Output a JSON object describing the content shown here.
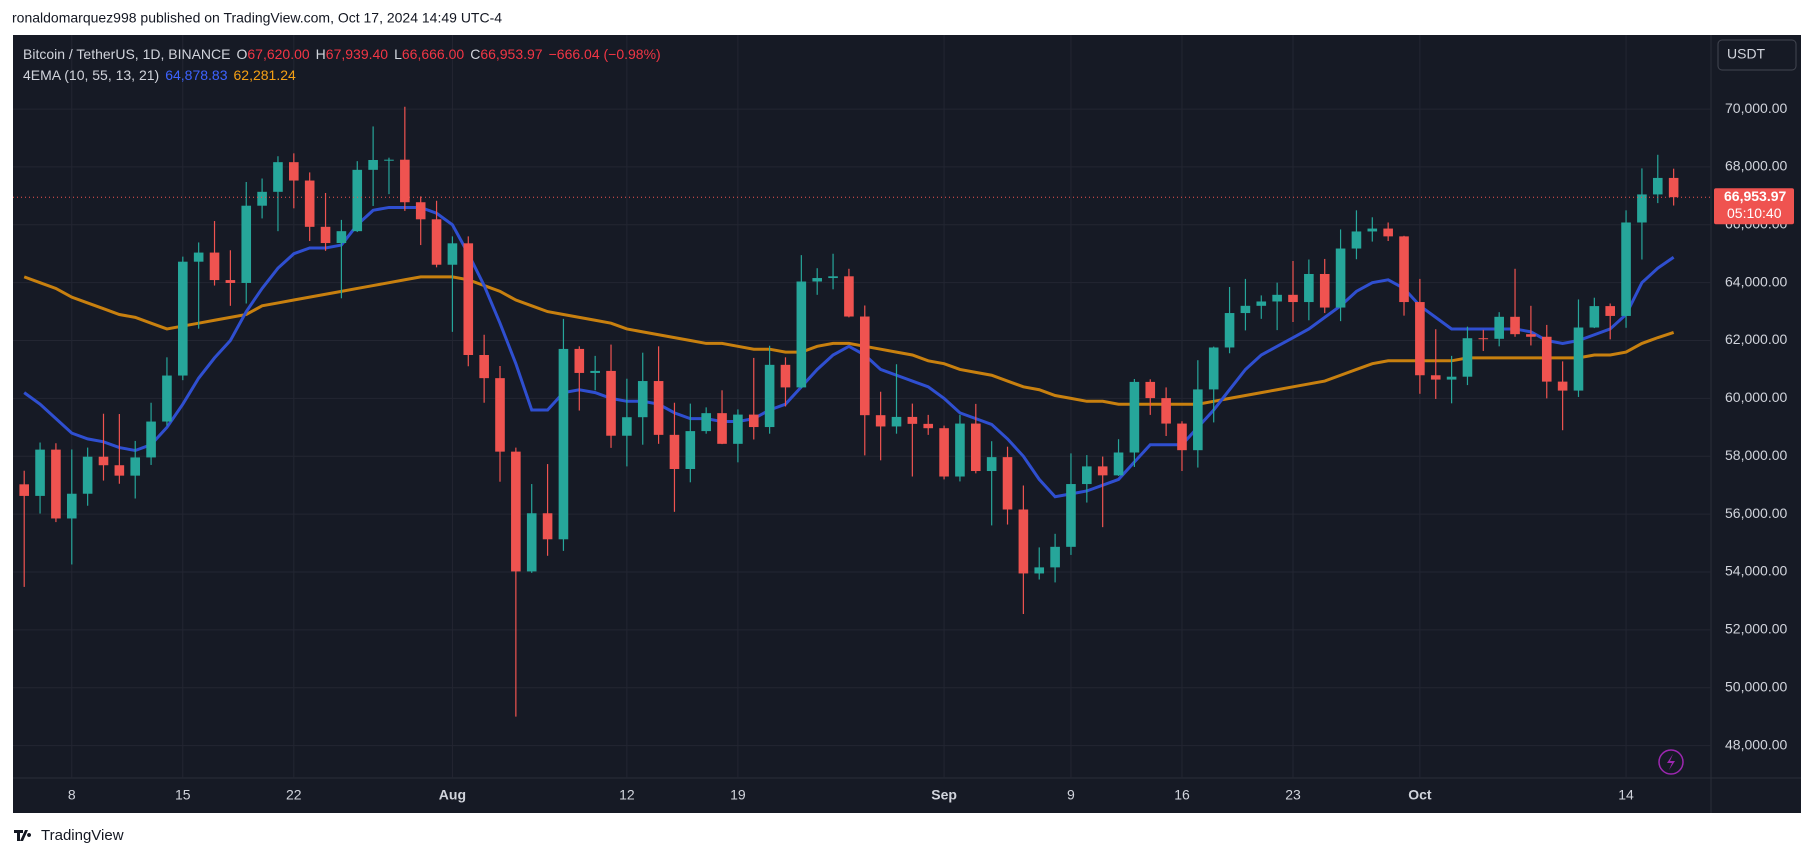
{
  "header": {
    "published": "ronaldomarquez998 published on TradingView.com, Oct 17, 2024 14:49 UTC-4",
    "currency": "USDT",
    "brand": "TradingView"
  },
  "chart_data": {
    "type": "candlestick",
    "symbol": "Bitcoin / TetherUS, 1D, BINANCE",
    "ohlc_legend": [
      {
        "key": "O",
        "value": "67,620.00"
      },
      {
        "key": "H",
        "value": "67,939.40"
      },
      {
        "key": "L",
        "value": "66,666.00"
      },
      {
        "key": "C",
        "value": "66,953.97"
      }
    ],
    "change": "−666.04 (−0.98%)",
    "up_color": "#26a69a",
    "down_color": "#ef5350",
    "x": [
      "Jul 5",
      "Jul 6",
      "Jul 7",
      "Jul 8",
      "Jul 9",
      "Jul 10",
      "Jul 11",
      "Jul 12",
      "Jul 13",
      "Jul 14",
      "Jul 15",
      "Jul 16",
      "Jul 17",
      "Jul 18",
      "Jul 19",
      "Jul 20",
      "Jul 21",
      "Jul 22",
      "Jul 23",
      "Jul 24",
      "Jul 25",
      "Jul 26",
      "Jul 27",
      "Jul 28",
      "Jul 29",
      "Jul 30",
      "Jul 31",
      "Aug 1",
      "Aug 2",
      "Aug 3",
      "Aug 4",
      "Aug 5",
      "Aug 6",
      "Aug 7",
      "Aug 8",
      "Aug 9",
      "Aug 10",
      "Aug 11",
      "Aug 12",
      "Aug 13",
      "Aug 14",
      "Aug 15",
      "Aug 16",
      "Aug 17",
      "Aug 18",
      "Aug 19",
      "Aug 20",
      "Aug 21",
      "Aug 22",
      "Aug 23",
      "Aug 24",
      "Aug 25",
      "Aug 26",
      "Aug 27",
      "Aug 28",
      "Aug 29",
      "Aug 30",
      "Aug 31",
      "Sep 1",
      "Sep 2",
      "Sep 3",
      "Sep 4",
      "Sep 5",
      "Sep 6",
      "Sep 7",
      "Sep 8",
      "Sep 9",
      "Sep 10",
      "Sep 11",
      "Sep 12",
      "Sep 13",
      "Sep 14",
      "Sep 15",
      "Sep 16",
      "Sep 17",
      "Sep 18",
      "Sep 19",
      "Sep 20",
      "Sep 21",
      "Sep 22",
      "Sep 23",
      "Sep 24",
      "Sep 25",
      "Sep 26",
      "Sep 27",
      "Sep 28",
      "Sep 29",
      "Sep 30",
      "Oct 1",
      "Oct 2",
      "Oct 3",
      "Oct 4",
      "Oct 5",
      "Oct 6",
      "Oct 7",
      "Oct 8",
      "Oct 9",
      "Oct 10",
      "Oct 11",
      "Oct 12",
      "Oct 13",
      "Oct 14",
      "Oct 15",
      "Oct 16",
      "Oct 17"
    ],
    "open": [
      57030,
      56630,
      58230,
      55850,
      56705,
      57985,
      57690,
      57330,
      57960,
      59200,
      60790,
      64725,
      65040,
      64090,
      63990,
      66660,
      67140,
      68165,
      67530,
      65930,
      65370,
      65780,
      67900,
      68240,
      68250,
      66780,
      66190,
      64620,
      65360,
      61500,
      60700,
      58160,
      54020,
      56030,
      55130,
      61710,
      60880,
      60950,
      58710,
      59350,
      60600,
      58740,
      57560,
      58870,
      59490,
      58430,
      59440,
      59010,
      61160,
      60380,
      64040,
      64160,
      64220,
      62830,
      59420,
      59030,
      59360,
      59120,
      58970,
      57300,
      59130,
      57490,
      57970,
      56160,
      53950,
      54160,
      54870,
      57040,
      57650,
      57340,
      58130,
      60570,
      60010,
      59130,
      58210,
      60310,
      61760,
      62950,
      63200,
      63350,
      63580,
      63330,
      64300,
      63140,
      65180,
      65770,
      65870,
      65600,
      63330,
      60800,
      60650,
      60750,
      62080,
      62060,
      62820,
      62220,
      62130,
      60580,
      60270,
      62450,
      63190,
      62850,
      66080,
      67050,
      67620
    ],
    "high": [
      57500,
      58475,
      58450,
      58235,
      58300,
      59470,
      59460,
      58530,
      59850,
      61420,
      64900,
      65390,
      66130,
      65120,
      67480,
      67600,
      68370,
      68470,
      67810,
      67100,
      66170,
      68200,
      69400,
      68320,
      70080,
      66980,
      66830,
      65600,
      65600,
      62200,
      61120,
      58300,
      57040,
      57730,
      62750,
      61800,
      61470,
      61860,
      60680,
      61580,
      61800,
      59850,
      59820,
      59690,
      60280,
      59620,
      61400,
      61820,
      61420,
      64950,
      64500,
      65000,
      64480,
      63210,
      60230,
      61180,
      59820,
      59430,
      59060,
      59430,
      59810,
      58520,
      58330,
      56990,
      54850,
      55320,
      58100,
      58040,
      57990,
      58590,
      60670,
      60660,
      60380,
      59210,
      61320,
      61790,
      63850,
      64130,
      63560,
      64000,
      64750,
      64800,
      64820,
      65840,
      66500,
      66260,
      66080,
      65620,
      64130,
      62390,
      61470,
      62480,
      62370,
      62980,
      64480,
      63200,
      62540,
      61280,
      63420,
      63480,
      63280,
      66500,
      67950,
      68420,
      67939.4
    ],
    "low": [
      53485,
      56020,
      55725,
      54260,
      56290,
      57160,
      57050,
      56540,
      57700,
      59060,
      60630,
      62410,
      63900,
      63200,
      63280,
      66220,
      65780,
      66570,
      65440,
      65100,
      63460,
      65750,
      66650,
      67060,
      66480,
      65300,
      64530,
      62300,
      61110,
      59850,
      57120,
      49000,
      53970,
      54560,
      54730,
      59580,
      60280,
      58290,
      57650,
      58400,
      58430,
      56080,
      57100,
      58780,
      58420,
      57790,
      58580,
      58780,
      59720,
      60350,
      63580,
      63770,
      62800,
      58030,
      57860,
      58780,
      57300,
      58740,
      57200,
      57130,
      57410,
      55610,
      55640,
      52550,
      53740,
      53640,
      54590,
      56400,
      55550,
      57320,
      57630,
      59430,
      58700,
      57490,
      57610,
      59170,
      61560,
      62350,
      62750,
      62360,
      62640,
      62700,
      62950,
      62670,
      64810,
      65420,
      65440,
      62860,
      60160,
      59980,
      59830,
      60460,
      61640,
      61800,
      62130,
      61830,
      60000,
      58900,
      60050,
      62430,
      62040,
      62440,
      64800,
      66750,
      66666
    ],
    "close": [
      56630,
      58230,
      55850,
      56705,
      57985,
      57690,
      57330,
      57960,
      59200,
      60790,
      64725,
      65040,
      64090,
      63990,
      66660,
      67140,
      68165,
      67530,
      65930,
      65370,
      65780,
      67900,
      68240,
      68250,
      66780,
      66190,
      64620,
      65360,
      61500,
      60700,
      58160,
      54020,
      56030,
      55130,
      61710,
      60880,
      60950,
      58710,
      59350,
      60600,
      58740,
      57560,
      58870,
      59490,
      58430,
      59440,
      59010,
      61160,
      60380,
      64040,
      64160,
      64220,
      62830,
      59420,
      59030,
      59360,
      59120,
      58970,
      57300,
      59130,
      57490,
      57970,
      56160,
      53950,
      54160,
      54870,
      57040,
      57650,
      57340,
      58130,
      60570,
      60010,
      59130,
      58210,
      60310,
      61760,
      62950,
      63200,
      63350,
      63580,
      63330,
      64300,
      63140,
      65180,
      65770,
      65870,
      65600,
      63330,
      60800,
      60650,
      60750,
      62080,
      62060,
      62820,
      62220,
      62130,
      60580,
      60270,
      62450,
      63190,
      62850,
      66080,
      67050,
      67620,
      66953.97
    ],
    "indicator": {
      "label": "4EMA (10, 55, 13, 21)",
      "lines": [
        {
          "color": "#2f4fd0",
          "last_label": "64,878.83",
          "values": [
            60200,
            59800,
            59300,
            58800,
            58600,
            58500,
            58300,
            58200,
            58400,
            59000,
            59800,
            60700,
            61400,
            62000,
            63000,
            63800,
            64500,
            65000,
            65200,
            65200,
            65300,
            66000,
            66500,
            66600,
            66600,
            66600,
            66400,
            66000,
            65000,
            63900,
            62600,
            61200,
            59600,
            59600,
            60200,
            60300,
            60200,
            60000,
            59900,
            59900,
            59800,
            59500,
            59300,
            59300,
            59200,
            59200,
            59300,
            59600,
            59800,
            60400,
            61000,
            61500,
            61800,
            61500,
            61000,
            60800,
            60600,
            60400,
            60000,
            59500,
            59300,
            59100,
            58600,
            58000,
            57200,
            56600,
            56700,
            56800,
            57000,
            57200,
            57800,
            58400,
            58400,
            58400,
            59000,
            59600,
            60300,
            61000,
            61500,
            61800,
            62100,
            62400,
            62800,
            63200,
            63700,
            64000,
            64100,
            63800,
            63200,
            62800,
            62400,
            62400,
            62400,
            62400,
            62400,
            62300,
            62000,
            61900,
            62000,
            62200,
            62400,
            62900,
            64000,
            64500,
            64878.83
          ]
        },
        {
          "color": "#c8800f",
          "last_label": "62,281.24",
          "values": [
            64200,
            64000,
            63800,
            63500,
            63300,
            63100,
            62900,
            62800,
            62600,
            62400,
            62500,
            62600,
            62700,
            62800,
            62900,
            63200,
            63300,
            63400,
            63500,
            63600,
            63700,
            63800,
            63900,
            64000,
            64100,
            64200,
            64200,
            64200,
            64100,
            63900,
            63700,
            63400,
            63200,
            63000,
            62900,
            62800,
            62700,
            62600,
            62400,
            62300,
            62200,
            62100,
            62000,
            61900,
            61900,
            61800,
            61700,
            61700,
            61600,
            61600,
            61800,
            61900,
            61900,
            61800,
            61700,
            61600,
            61500,
            61300,
            61200,
            61000,
            60900,
            60800,
            60600,
            60400,
            60300,
            60100,
            60000,
            59900,
            59900,
            59800,
            59800,
            59800,
            59800,
            59800,
            59800,
            59900,
            60000,
            60100,
            60200,
            60300,
            60400,
            60500,
            60600,
            60800,
            61000,
            61200,
            61300,
            61300,
            61300,
            61300,
            61300,
            61400,
            61400,
            61400,
            61400,
            61400,
            61400,
            61400,
            61400,
            61500,
            61500,
            61600,
            61900,
            62100,
            62281.24
          ]
        }
      ]
    },
    "price_tag": {
      "label": "66,953.97",
      "countdown": "05:10:40"
    },
    "ylim": [
      46880,
      72560
    ],
    "yticks": [
      {
        "value": 48000,
        "label": "48,000.00"
      },
      {
        "value": 50000,
        "label": "50,000.00"
      },
      {
        "value": 52000,
        "label": "52,000.00"
      },
      {
        "value": 54000,
        "label": "54,000.00"
      },
      {
        "value": 56000,
        "label": "56,000.00"
      },
      {
        "value": 58000,
        "label": "58,000.00"
      },
      {
        "value": 60000,
        "label": "60,000.00"
      },
      {
        "value": 62000,
        "label": "62,000.00"
      },
      {
        "value": 64000,
        "label": "64,000.00"
      },
      {
        "value": 66000,
        "label": "66,000.00"
      },
      {
        "value": 68000,
        "label": "68,000.00"
      },
      {
        "value": 70000,
        "label": "70,000.00"
      }
    ],
    "xticks": [
      {
        "value": "Jul 8",
        "label": "8"
      },
      {
        "value": "Jul 15",
        "label": "15"
      },
      {
        "value": "Jul 22",
        "label": "22"
      },
      {
        "value": "Aug 1",
        "label": "Aug"
      },
      {
        "value": "Aug 12",
        "label": "12"
      },
      {
        "value": "Aug 19",
        "label": "19"
      },
      {
        "value": "Sep 1",
        "label": "Sep"
      },
      {
        "value": "Sep 9",
        "label": "9"
      },
      {
        "value": "Sep 16",
        "label": "16"
      },
      {
        "value": "Sep 23",
        "label": "23"
      },
      {
        "value": "Oct 1",
        "label": "Oct"
      },
      {
        "value": "Oct 14",
        "label": "14"
      }
    ],
    "grid": true
  }
}
